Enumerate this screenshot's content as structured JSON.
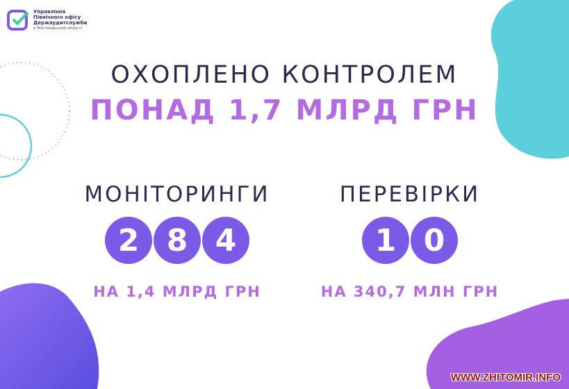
{
  "logo": {
    "lines": [
      "Управління",
      "Північного офісу",
      "Держаудитслужби"
    ],
    "sub": "в Житомирській області"
  },
  "headline": {
    "line1": "ОХОПЛЕНО КОНТРОЛЕМ",
    "line2": "ПОНАД 1,7 МЛРД ГРН"
  },
  "monitoring": {
    "label": "МОНІТОРИНГИ",
    "digits": [
      "2",
      "8",
      "4"
    ],
    "amount": "НА 1,4 МЛРД ГРН"
  },
  "inspections": {
    "label": "ПЕРЕВІРКИ",
    "digits": [
      "1",
      "0"
    ],
    "amount": "НА 340,7 МЛН ГРН"
  },
  "watermark": "WWW.ZHITOMIR.INFO",
  "colors": {
    "navy": "#272a4d",
    "purple": "#b46be2",
    "circle": "#7a5ae6",
    "teal": "#5ccfdc",
    "violet": "#a35ee2"
  }
}
